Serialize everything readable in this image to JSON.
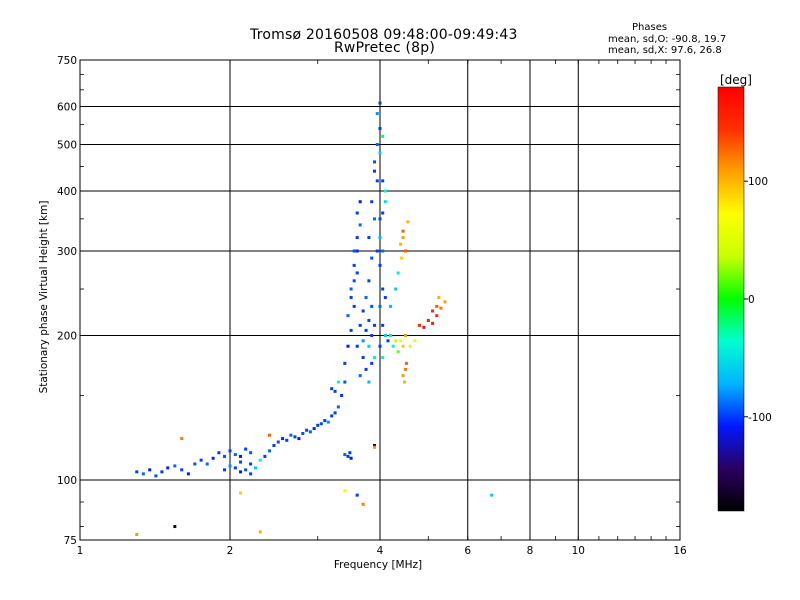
{
  "header": {
    "title": "Tromsø 20160508 09:48:00-09:49:43",
    "subtitle": "RwPretec (8p)",
    "stats_heading": "Phases",
    "stats_o": "mean, sd,O: -90.8, 19.7",
    "stats_x": "mean, sd,X:  97.6, 26.8"
  },
  "colorbar": {
    "unit": "[deg]",
    "ticks": [
      {
        "value": 100,
        "label": "100"
      },
      {
        "value": 0,
        "label": "0"
      },
      {
        "value": -100,
        "label": "-100"
      }
    ],
    "range": [
      -180,
      180
    ],
    "stops": [
      "#000000",
      "#2b0060",
      "#0018ff",
      "#00b4ff",
      "#00ffd0",
      "#00ff00",
      "#c8ff00",
      "#ffff00",
      "#ffa000",
      "#ff3000",
      "#ff0000"
    ]
  },
  "chart_data": {
    "type": "scatter",
    "xlabel": "Frequency [MHz]",
    "ylabel": "Stationary phase Virtual Height [km]",
    "xscale": "log",
    "yscale": "log",
    "xlim": [
      1,
      16
    ],
    "ylim": [
      75,
      750
    ],
    "xticks": [
      1,
      2,
      4,
      6,
      8,
      10,
      16
    ],
    "xtick_labels": [
      "1",
      "2",
      "4",
      "6",
      "8",
      "10",
      "16"
    ],
    "yticks": [
      75,
      100,
      200,
      300,
      400,
      500,
      600,
      750
    ],
    "ytick_labels": [
      "75",
      "100",
      "200",
      "300",
      "400",
      "500",
      "600",
      "750"
    ],
    "grid": true,
    "points": [
      [
        1.3,
        104,
        -100
      ],
      [
        1.34,
        103,
        -90
      ],
      [
        1.38,
        105,
        -110
      ],
      [
        1.42,
        102,
        -95
      ],
      [
        1.46,
        104,
        -100
      ],
      [
        1.5,
        106,
        -105
      ],
      [
        1.55,
        107,
        -90
      ],
      [
        1.6,
        105,
        -100
      ],
      [
        1.65,
        103,
        -110
      ],
      [
        1.7,
        108,
        -95
      ],
      [
        1.75,
        110,
        -100
      ],
      [
        1.8,
        108,
        -90
      ],
      [
        1.85,
        111,
        -105
      ],
      [
        1.9,
        114,
        -100
      ],
      [
        1.95,
        112,
        -95
      ],
      [
        2.0,
        115,
        -100
      ],
      [
        2.05,
        113,
        -90
      ],
      [
        2.1,
        112,
        -110
      ],
      [
        2.15,
        116,
        -100
      ],
      [
        2.2,
        114,
        -95
      ],
      [
        1.95,
        105,
        -100
      ],
      [
        2.0,
        107,
        -80
      ],
      [
        2.05,
        106,
        -100
      ],
      [
        2.1,
        104,
        -110
      ],
      [
        2.15,
        105,
        -95
      ],
      [
        2.2,
        108,
        -100
      ],
      [
        2.25,
        106,
        -60
      ],
      [
        2.3,
        110,
        -40
      ],
      [
        2.2,
        103,
        -100
      ],
      [
        2.1,
        109,
        -100
      ],
      [
        2.35,
        112,
        -100
      ],
      [
        2.4,
        115,
        -90
      ],
      [
        2.45,
        118,
        -100
      ],
      [
        2.5,
        120,
        -95
      ],
      [
        2.55,
        122,
        -105
      ],
      [
        2.6,
        121,
        -100
      ],
      [
        2.65,
        124,
        -90
      ],
      [
        2.7,
        123,
        -100
      ],
      [
        2.75,
        122,
        -110
      ],
      [
        2.8,
        125,
        -95
      ],
      [
        2.85,
        127,
        -100
      ],
      [
        2.9,
        126,
        -90
      ],
      [
        2.95,
        128,
        -105
      ],
      [
        3.0,
        130,
        -100
      ],
      [
        3.05,
        131,
        -95
      ],
      [
        3.1,
        133,
        -100
      ],
      [
        3.15,
        132,
        -80
      ],
      [
        3.2,
        136,
        -100
      ],
      [
        3.25,
        138,
        -100
      ],
      [
        3.3,
        142,
        -90
      ],
      [
        3.35,
        150,
        -100
      ],
      [
        3.4,
        160,
        -95
      ],
      [
        3.4,
        175,
        -100
      ],
      [
        3.45,
        190,
        -110
      ],
      [
        3.5,
        205,
        -100
      ],
      [
        3.45,
        220,
        -90
      ],
      [
        3.5,
        240,
        -100
      ],
      [
        3.55,
        260,
        -95
      ],
      [
        3.55,
        280,
        -100
      ],
      [
        3.6,
        300,
        -105
      ],
      [
        3.6,
        320,
        -100
      ],
      [
        3.65,
        340,
        -90
      ],
      [
        3.6,
        360,
        -100
      ],
      [
        3.65,
        380,
        -110
      ],
      [
        3.55,
        230,
        -100
      ],
      [
        3.5,
        250,
        -90
      ],
      [
        3.6,
        270,
        -100
      ],
      [
        3.55,
        300,
        -95
      ],
      [
        3.6,
        190,
        -100
      ],
      [
        3.65,
        210,
        -100
      ],
      [
        3.7,
        195,
        -80
      ],
      [
        3.7,
        225,
        -100
      ],
      [
        3.75,
        240,
        -90
      ],
      [
        3.75,
        205,
        -100
      ],
      [
        3.8,
        190,
        -60
      ],
      [
        3.8,
        215,
        -100
      ],
      [
        3.85,
        230,
        -95
      ],
      [
        3.85,
        200,
        -100
      ],
      [
        3.9,
        180,
        -40
      ],
      [
        3.9,
        210,
        -100
      ],
      [
        3.75,
        170,
        -100
      ],
      [
        3.8,
        160,
        -70
      ],
      [
        3.7,
        180,
        -100
      ],
      [
        3.65,
        165,
        -90
      ],
      [
        3.85,
        175,
        -100
      ],
      [
        3.8,
        260,
        -100
      ],
      [
        3.85,
        290,
        -95
      ],
      [
        3.8,
        320,
        -100
      ],
      [
        3.9,
        350,
        -90
      ],
      [
        3.85,
        380,
        -100
      ],
      [
        3.95,
        420,
        -100
      ],
      [
        3.9,
        460,
        -95
      ],
      [
        3.95,
        500,
        -90
      ],
      [
        4.0,
        540,
        -100
      ],
      [
        3.95,
        580,
        -80
      ],
      [
        4.0,
        610,
        -100
      ],
      [
        3.9,
        440,
        -100
      ],
      [
        4.0,
        480,
        -60
      ],
      [
        4.05,
        520,
        -20
      ],
      [
        4.05,
        420,
        -100
      ],
      [
        4.1,
        380,
        -50
      ],
      [
        4.0,
        350,
        -100
      ],
      [
        4.05,
        300,
        -90
      ],
      [
        4.0,
        280,
        -100
      ],
      [
        4.05,
        250,
        -100
      ],
      [
        4.0,
        230,
        -90
      ],
      [
        4.05,
        210,
        -100
      ],
      [
        4.1,
        200,
        -60
      ],
      [
        4.0,
        190,
        -100
      ],
      [
        4.05,
        180,
        -30
      ],
      [
        4.1,
        240,
        -100
      ],
      [
        4.0,
        320,
        -70
      ],
      [
        4.05,
        360,
        -100
      ],
      [
        4.1,
        400,
        -40
      ],
      [
        3.95,
        300,
        -100
      ],
      [
        4.15,
        195,
        -100
      ],
      [
        4.2,
        200,
        -20
      ],
      [
        4.25,
        190,
        -40
      ],
      [
        4.3,
        195,
        40
      ],
      [
        4.35,
        185,
        20
      ],
      [
        4.4,
        195,
        60
      ],
      [
        4.45,
        190,
        90
      ],
      [
        4.5,
        200,
        110
      ],
      [
        4.6,
        190,
        80
      ],
      [
        4.7,
        195,
        60
      ],
      [
        4.45,
        165,
        110
      ],
      [
        4.5,
        170,
        120
      ],
      [
        4.48,
        160,
        100
      ],
      [
        4.52,
        175,
        130
      ],
      [
        4.4,
        310,
        100
      ],
      [
        4.45,
        320,
        110
      ],
      [
        4.5,
        300,
        130
      ],
      [
        4.42,
        290,
        90
      ],
      [
        4.8,
        210,
        150
      ],
      [
        5.0,
        215,
        160
      ],
      [
        5.1,
        225,
        150
      ],
      [
        5.2,
        230,
        130
      ],
      [
        5.3,
        228,
        120
      ],
      [
        5.25,
        240,
        100
      ],
      [
        5.4,
        235,
        110
      ],
      [
        5.1,
        212,
        160
      ],
      [
        5.2,
        220,
        150
      ],
      [
        4.9,
        208,
        170
      ],
      [
        3.45,
        112,
        -100
      ],
      [
        3.5,
        111,
        -110
      ],
      [
        3.4,
        113,
        -90
      ],
      [
        3.48,
        114,
        -100
      ],
      [
        3.9,
        118,
        -170
      ],
      [
        3.9,
        117,
        110
      ],
      [
        4.3,
        250,
        -60
      ],
      [
        4.35,
        270,
        -40
      ],
      [
        4.2,
        230,
        -70
      ],
      [
        3.25,
        153,
        -100
      ],
      [
        3.3,
        160,
        -40
      ],
      [
        3.2,
        155,
        -100
      ],
      [
        4.45,
        330,
        130
      ],
      [
        4.55,
        345,
        100
      ],
      [
        1.3,
        77,
        110
      ],
      [
        1.55,
        80,
        -160
      ],
      [
        2.3,
        78,
        100
      ],
      [
        2.1,
        94,
        90
      ],
      [
        3.4,
        95,
        60
      ],
      [
        3.6,
        93,
        -100
      ],
      [
        3.7,
        89,
        120
      ],
      [
        1.6,
        122,
        120
      ],
      [
        6.7,
        93,
        -60
      ],
      [
        2.4,
        124,
        130
      ]
    ]
  }
}
